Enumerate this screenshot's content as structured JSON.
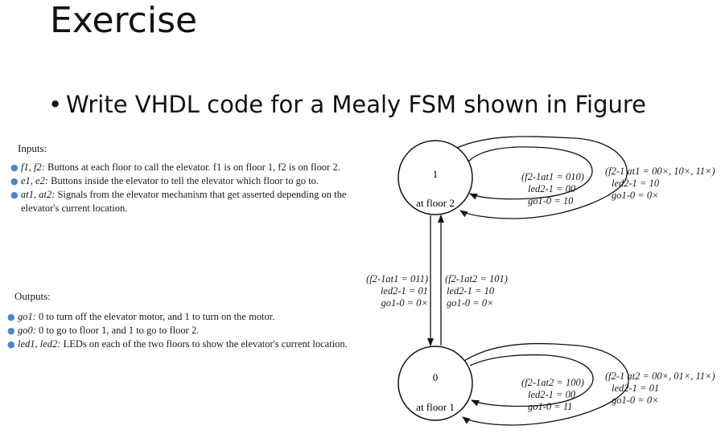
{
  "slide": {
    "title": "Exercise",
    "bullet": "Write VHDL code for a Mealy FSM shown in Figure"
  },
  "inputs": {
    "label": "Inputs:",
    "items": [
      {
        "names": "f1, f2:",
        "text": " Buttons at each floor to call the elevator. f1 is on floor 1, f2 is on floor 2."
      },
      {
        "names": "e1, e2:",
        "text": " Buttons inside the elevator to tell the elevator which floor to go to."
      },
      {
        "names": "at1, at2:",
        "text": " Signals from the elevator mechanism that get asserted depending on the elevator's current location."
      }
    ]
  },
  "outputs": {
    "label": "Outputs:",
    "items": [
      {
        "names": "go1:",
        "text": " 0 to turn off the elevator motor, and 1 to turn on the motor."
      },
      {
        "names": "go0:",
        "text": " 0 to go to floor 1, and 1 to go to floor 2."
      },
      {
        "names": "led1, led2:",
        "text": " LEDs on each of the two floors to show the elevator's current location."
      }
    ]
  },
  "fsm": {
    "states": [
      {
        "id": "1",
        "label": "at floor 2"
      },
      {
        "id": "0",
        "label": "at floor 1"
      }
    ],
    "transitions": {
      "s1_inner_loop": {
        "cond": "(f2-1at1 = 010)",
        "led": "led2-1 = 00",
        "go": "go1-0 = 10"
      },
      "s1_outer_loop": {
        "cond": "(f2-1 at1 = 00×, 10×, 11×)",
        "led": "led2-1 = 10",
        "go": "go1-0 = 0×"
      },
      "down": {
        "cond": "(f2-1at1 = 011)",
        "led": "led2-1 = 01",
        "go": "go1-0 = 0×"
      },
      "up": {
        "cond": "(f2-1at2 = 101)",
        "led": "led2-1 = 10",
        "go": "go1-0 = 0×"
      },
      "s0_inner_loop": {
        "cond": "(f2-1at2 = 100)",
        "led": "led2-1 = 00",
        "go": "go1-0 = 11"
      },
      "s0_outer_loop": {
        "cond": "(f2-1 at2 = 00×, 01×, 11×)",
        "led": "led2-1 = 01",
        "go": "go1-0 = 0×"
      }
    }
  }
}
